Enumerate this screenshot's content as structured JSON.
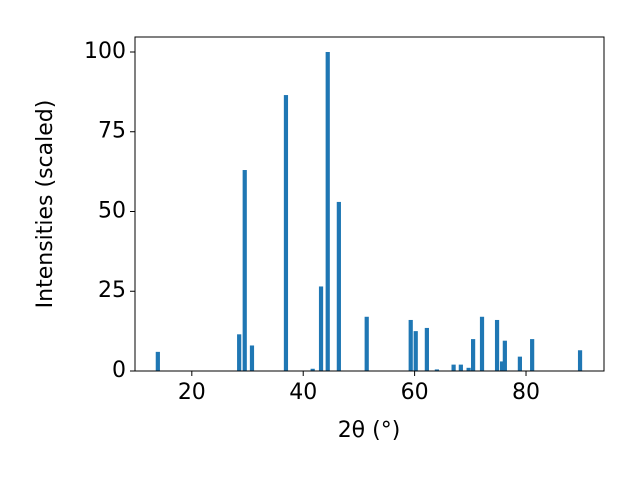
{
  "chart_data": {
    "type": "bar",
    "x_label": "2θ (°)",
    "y_label": "Intensities (scaled)",
    "x": [
      13.9,
      28.5,
      29.5,
      30.8,
      36.9,
      41.7,
      43.2,
      44.4,
      46.4,
      51.4,
      59.3,
      60.2,
      62.2,
      64.0,
      67.0,
      68.3,
      69.7,
      70.5,
      72.1,
      74.8,
      75.7,
      76.2,
      78.9,
      81.1,
      89.7
    ],
    "values": [
      6,
      11.5,
      63,
      8,
      86.5,
      0.7,
      26.5,
      100,
      53,
      17,
      16,
      12.5,
      13.5,
      0.5,
      2,
      2,
      1,
      10,
      17,
      16,
      3,
      9.5,
      4.5,
      10,
      6.5
    ],
    "color": "#1f77b4",
    "xlim": [
      9.8,
      94.0
    ],
    "xticks": [
      20,
      40,
      60,
      80
    ],
    "ylim": [
      0,
      104.7
    ],
    "yticks": [
      0,
      25,
      50,
      75,
      100
    ],
    "grid": false
  }
}
